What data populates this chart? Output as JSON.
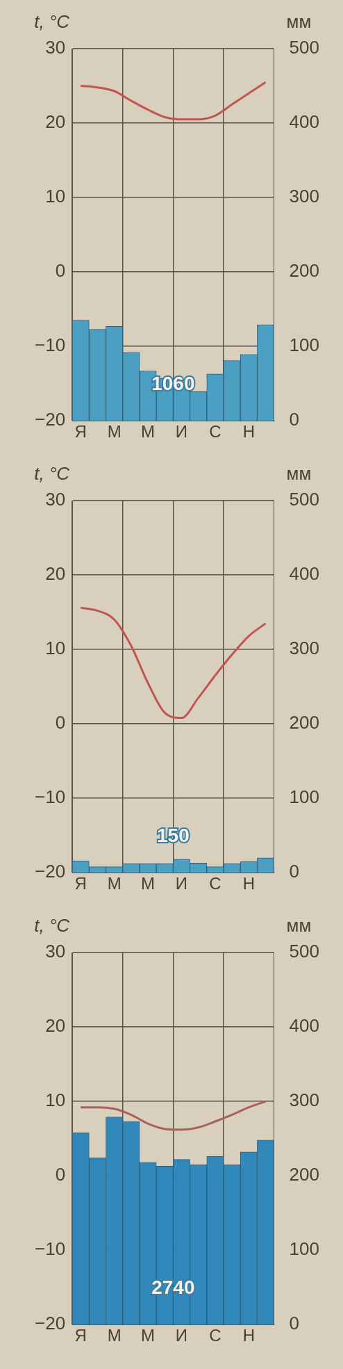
{
  "chart_data": [
    {
      "type": "bar",
      "ylabel": "t, °C",
      "y2label": "мм",
      "categories": [
        "Я",
        null,
        "М",
        null,
        "М",
        null,
        "И",
        null,
        "С",
        null,
        "Н",
        null
      ],
      "series": [
        {
          "axis": "y2",
          "color": "#4a9fc2",
          "values": [
            135,
            123,
            127,
            92,
            67,
            57,
            47,
            39,
            63,
            81,
            89,
            129
          ]
        },
        {
          "type": "line",
          "axis": "y",
          "color": "#c0574f",
          "values": [
            25,
            24.8,
            24.3,
            23,
            21.8,
            20.8,
            20.5,
            20.5,
            21,
            22.5,
            24,
            25.5
          ]
        }
      ],
      "ylim": [
        -20,
        30
      ],
      "yticks": [
        -20,
        -10,
        0,
        10,
        20,
        30
      ],
      "y2lim": [
        0,
        500
      ],
      "y2ticks": [
        0,
        100,
        200,
        300,
        400,
        500
      ],
      "grid": true,
      "legend": false,
      "marker": "none",
      "annotations": [
        "1060"
      ]
    },
    {
      "type": "bar",
      "ylabel": "t, °C",
      "y2label": "мм",
      "categories": [
        "Я",
        null,
        "М",
        null,
        "М",
        null,
        "И",
        null,
        "С",
        null,
        "Н",
        null
      ],
      "series": [
        {
          "axis": "y2",
          "color": "#4a9fc2",
          "values": [
            16,
            8,
            8,
            12,
            12,
            12,
            18,
            13,
            8,
            12,
            15,
            20
          ]
        },
        {
          "type": "line",
          "axis": "y",
          "color": "#c0574f",
          "values": [
            15.6,
            15.2,
            14,
            10.5,
            5.5,
            1.5,
            0.8,
            3.5,
            6.5,
            9.3,
            11.8,
            13.5
          ]
        }
      ],
      "ylim": [
        -20,
        30
      ],
      "yticks": [
        -20,
        -10,
        0,
        10,
        20,
        30
      ],
      "y2lim": [
        0,
        500
      ],
      "y2ticks": [
        0,
        100,
        200,
        300,
        400,
        500
      ],
      "grid": true,
      "legend": false,
      "marker": "none",
      "annotations": [
        "150"
      ]
    },
    {
      "type": "bar",
      "ylabel": "t, °C",
      "y2label": "мм",
      "categories": [
        "Я",
        null,
        "М",
        null,
        "М",
        null,
        "И",
        null,
        "С",
        null,
        "Н",
        null
      ],
      "series": [
        {
          "axis": "y2",
          "color": "#3089ba",
          "values": [
            258,
            224,
            279,
            273,
            218,
            213,
            222,
            215,
            226,
            215,
            232,
            248
          ]
        },
        {
          "type": "line",
          "axis": "y",
          "color": "#a8605a",
          "values": [
            9.2,
            9.2,
            9,
            8.2,
            7,
            6.3,
            6.2,
            6.5,
            7.3,
            8.2,
            9.2,
            10
          ]
        }
      ],
      "ylim": [
        -20,
        30
      ],
      "yticks": [
        -20,
        -10,
        0,
        10,
        20,
        30
      ],
      "y2lim": [
        0,
        500
      ],
      "y2ticks": [
        0,
        100,
        200,
        300,
        400,
        500
      ],
      "grid": true,
      "legend": false,
      "marker": "none",
      "annotations": [
        "2740"
      ]
    }
  ]
}
